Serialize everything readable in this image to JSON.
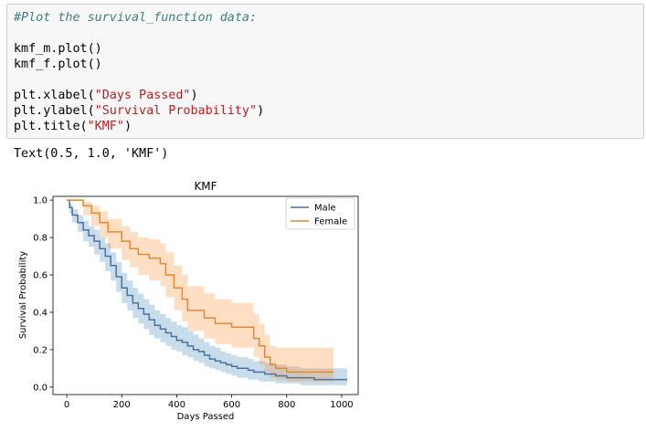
{
  "notebook": {
    "code_lines": [
      {
        "parts": [
          {
            "t": "#Plot the survival_function data:",
            "c": "comment"
          }
        ]
      },
      {
        "parts": [
          {
            "t": "",
            "c": ""
          }
        ]
      },
      {
        "parts": [
          {
            "t": "kmf_m.plot()",
            "c": ""
          }
        ]
      },
      {
        "parts": [
          {
            "t": "kmf_f.plot()",
            "c": ""
          }
        ]
      },
      {
        "parts": [
          {
            "t": "",
            "c": ""
          }
        ]
      },
      {
        "parts": [
          {
            "t": "plt.xlabel(",
            "c": ""
          },
          {
            "t": "\"Days Passed\"",
            "c": "str"
          },
          {
            "t": ")",
            "c": ""
          }
        ]
      },
      {
        "parts": [
          {
            "t": "plt.ylabel(",
            "c": ""
          },
          {
            "t": "\"Survival Probability\"",
            "c": "str"
          },
          {
            "t": ")",
            "c": ""
          }
        ]
      },
      {
        "parts": [
          {
            "t": "plt.title(",
            "c": ""
          },
          {
            "t": "\"KMF\"",
            "c": "str"
          },
          {
            "t": ")",
            "c": ""
          }
        ]
      }
    ],
    "output_text": "Text(0.5, 1.0, 'KMF')"
  },
  "chart_data": {
    "type": "line",
    "title": "KMF",
    "xlabel": "Days Passed",
    "ylabel": "Survival Probability",
    "xlim": [
      -50,
      1060
    ],
    "ylim": [
      -0.04,
      1.02
    ],
    "xticks": [
      0,
      200,
      400,
      600,
      800,
      1000
    ],
    "yticks": [
      0.0,
      0.2,
      0.4,
      0.6,
      0.8,
      1.0
    ],
    "legend_position": "top-right",
    "step": true,
    "series": [
      {
        "name": "Male",
        "color": "#4c72a0",
        "band_color": "#1f77b4",
        "x": [
          0,
          10,
          20,
          40,
          60,
          80,
          100,
          120,
          140,
          160,
          180,
          200,
          220,
          240,
          260,
          280,
          300,
          320,
          340,
          360,
          380,
          400,
          420,
          440,
          460,
          480,
          500,
          520,
          540,
          560,
          580,
          600,
          620,
          640,
          660,
          680,
          700,
          720,
          740,
          760,
          780,
          800,
          850,
          900,
          1000,
          1020
        ],
        "y": [
          1.0,
          0.96,
          0.92,
          0.88,
          0.84,
          0.81,
          0.78,
          0.74,
          0.7,
          0.65,
          0.59,
          0.53,
          0.49,
          0.45,
          0.42,
          0.39,
          0.36,
          0.33,
          0.31,
          0.29,
          0.27,
          0.25,
          0.24,
          0.22,
          0.2,
          0.19,
          0.17,
          0.15,
          0.14,
          0.13,
          0.12,
          0.11,
          0.1,
          0.1,
          0.09,
          0.08,
          0.08,
          0.07,
          0.07,
          0.06,
          0.06,
          0.05,
          0.05,
          0.04,
          0.04,
          0.04
        ],
        "lower": [
          1.0,
          0.93,
          0.88,
          0.83,
          0.78,
          0.75,
          0.71,
          0.67,
          0.62,
          0.57,
          0.51,
          0.45,
          0.41,
          0.37,
          0.34,
          0.31,
          0.28,
          0.26,
          0.24,
          0.22,
          0.2,
          0.19,
          0.17,
          0.16,
          0.14,
          0.13,
          0.11,
          0.1,
          0.09,
          0.08,
          0.07,
          0.06,
          0.05,
          0.05,
          0.04,
          0.04,
          0.03,
          0.03,
          0.03,
          0.02,
          0.02,
          0.02,
          0.01,
          0.01,
          0.01,
          0.01
        ],
        "upper": [
          1.0,
          0.98,
          0.95,
          0.92,
          0.89,
          0.86,
          0.84,
          0.8,
          0.77,
          0.72,
          0.67,
          0.61,
          0.57,
          0.53,
          0.5,
          0.47,
          0.44,
          0.41,
          0.39,
          0.37,
          0.35,
          0.33,
          0.32,
          0.3,
          0.28,
          0.26,
          0.24,
          0.22,
          0.21,
          0.19,
          0.18,
          0.17,
          0.16,
          0.16,
          0.15,
          0.14,
          0.14,
          0.13,
          0.13,
          0.12,
          0.12,
          0.11,
          0.1,
          0.1,
          0.1,
          0.1
        ]
      },
      {
        "name": "Female",
        "color": "#e8872e",
        "band_color": "#ff7f0e",
        "x": [
          0,
          60,
          90,
          120,
          150,
          200,
          230,
          260,
          300,
          340,
          360,
          390,
          420,
          440,
          500,
          540,
          560,
          600,
          640,
          680,
          700,
          720,
          740,
          760,
          800,
          900,
          970
        ],
        "y": [
          1.0,
          0.97,
          0.93,
          0.88,
          0.83,
          0.78,
          0.74,
          0.71,
          0.69,
          0.66,
          0.6,
          0.53,
          0.47,
          0.41,
          0.37,
          0.34,
          0.34,
          0.32,
          0.32,
          0.26,
          0.22,
          0.16,
          0.12,
          0.1,
          0.08,
          0.08,
          0.08
        ],
        "lower": [
          1.0,
          0.92,
          0.86,
          0.8,
          0.74,
          0.68,
          0.64,
          0.6,
          0.57,
          0.54,
          0.48,
          0.41,
          0.35,
          0.3,
          0.26,
          0.23,
          0.23,
          0.21,
          0.21,
          0.16,
          0.12,
          0.08,
          0.05,
          0.04,
          0.03,
          0.03,
          0.03
        ],
        "upper": [
          1.0,
          0.99,
          0.97,
          0.94,
          0.9,
          0.86,
          0.83,
          0.8,
          0.79,
          0.77,
          0.72,
          0.65,
          0.6,
          0.54,
          0.5,
          0.47,
          0.47,
          0.45,
          0.45,
          0.39,
          0.34,
          0.28,
          0.22,
          0.21,
          0.21,
          0.21,
          0.21
        ]
      }
    ]
  }
}
